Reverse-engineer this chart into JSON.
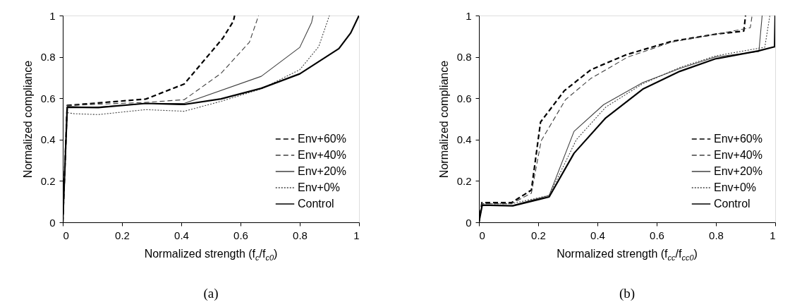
{
  "chart_data": [
    {
      "type": "line",
      "title": "(a)",
      "xlabel": "Normalized strength (f$_{c}$/f$_{c0}$)",
      "ylabel": "Normalized compliance",
      "xlim": [
        0,
        1
      ],
      "ylim": [
        0,
        1
      ],
      "xticks": [
        0,
        0.2,
        0.4,
        0.6,
        0.8,
        1
      ],
      "yticks": [
        0,
        0.2,
        0.4,
        0.6,
        0.8,
        1
      ],
      "grid": false,
      "legend": "bottom right",
      "series": [
        {
          "name": "Env+60%",
          "color": "#000000",
          "line_style": "dashed",
          "x": [
            0,
            0.015,
            0.1,
            0.28,
            0.41,
            0.54,
            0.576,
            0.58
          ],
          "values": [
            0,
            0.565,
            0.575,
            0.596,
            0.669,
            0.89,
            0.973,
            1.0
          ]
        },
        {
          "name": "Env+40%",
          "color": "#404040",
          "line_style": "dashed",
          "x": [
            0,
            0.015,
            0.28,
            0.41,
            0.534,
            0.63,
            0.661
          ],
          "values": [
            0,
            0.565,
            0.58,
            0.593,
            0.72,
            0.871,
            1.0
          ]
        },
        {
          "name": "Env+20%",
          "color": "#404040",
          "line_style": "solid",
          "x": [
            0,
            0.015,
            0.1,
            0.28,
            0.41,
            0.67,
            0.8,
            0.84,
            0.845
          ],
          "values": [
            0,
            0.56,
            0.555,
            0.575,
            0.575,
            0.706,
            0.846,
            0.967,
            1.0
          ]
        },
        {
          "name": "Env+0%",
          "color": "#404040",
          "line_style": "dotted",
          "x": [
            0,
            0.015,
            0.04,
            0.12,
            0.28,
            0.41,
            0.534,
            0.67,
            0.8,
            0.864,
            0.9
          ],
          "values": [
            0,
            0.53,
            0.525,
            0.521,
            0.545,
            0.537,
            0.585,
            0.645,
            0.738,
            0.85,
            1.0
          ]
        },
        {
          "name": "Control",
          "color": "#000000",
          "line_style": "solid",
          "x": [
            0,
            0.015,
            0.12,
            0.28,
            0.41,
            0.534,
            0.67,
            0.8,
            0.932,
            0.972,
            1.0
          ],
          "values": [
            0,
            0.557,
            0.555,
            0.575,
            0.57,
            0.597,
            0.648,
            0.718,
            0.84,
            0.916,
            1.0
          ]
        }
      ]
    },
    {
      "type": "line",
      "title": "(b)",
      "xlabel": "Normalized strength (f$_{cc}$/f$_{cc0}$)",
      "ylabel": "Normalized compliance",
      "xlim": [
        0,
        1
      ],
      "ylim": [
        0,
        1
      ],
      "xticks": [
        0,
        0.2,
        0.4,
        0.6,
        0.8,
        1
      ],
      "yticks": [
        0,
        0.2,
        0.4,
        0.6,
        0.8,
        1
      ],
      "grid": false,
      "legend": "bottom right",
      "series": [
        {
          "name": "Env+60%",
          "color": "#000000",
          "line_style": "dashed",
          "x": [
            0,
            0.01,
            0.11,
            0.177,
            0.208,
            0.288,
            0.378,
            0.498,
            0.65,
            0.8,
            0.894,
            0.9
          ],
          "values": [
            0,
            0.095,
            0.095,
            0.156,
            0.485,
            0.636,
            0.738,
            0.811,
            0.875,
            0.91,
            0.925,
            1.0
          ]
        },
        {
          "name": "Env+40%",
          "color": "#404040",
          "line_style": "dashed",
          "x": [
            0,
            0.01,
            0.11,
            0.177,
            0.21,
            0.292,
            0.378,
            0.502,
            0.649,
            0.8,
            0.916,
            0.922
          ],
          "values": [
            0,
            0.09,
            0.09,
            0.141,
            0.394,
            0.593,
            0.696,
            0.799,
            0.871,
            0.91,
            0.941,
            1.0
          ]
        },
        {
          "name": "Env+20%",
          "color": "#404040",
          "line_style": "solid",
          "x": [
            0,
            0.01,
            0.11,
            0.237,
            0.321,
            0.421,
            0.553,
            0.68,
            0.8,
            0.945,
            0.956
          ],
          "values": [
            0,
            0.08,
            0.08,
            0.13,
            0.44,
            0.569,
            0.676,
            0.745,
            0.8,
            0.826,
            1.0
          ]
        },
        {
          "name": "Env+0%",
          "color": "#404040",
          "line_style": "dotted",
          "x": [
            0,
            0.01,
            0.11,
            0.237,
            0.329,
            0.428,
            0.553,
            0.68,
            0.8,
            0.965,
            0.982
          ],
          "values": [
            0,
            0.09,
            0.09,
            0.13,
            0.4,
            0.557,
            0.67,
            0.75,
            0.805,
            0.847,
            1.0
          ]
        },
        {
          "name": "Control",
          "color": "#000000",
          "line_style": "solid",
          "x": [
            0,
            0.011,
            0.114,
            0.237,
            0.321,
            0.428,
            0.553,
            0.678,
            0.797,
            0.943,
            0.998,
            1.0
          ],
          "values": [
            0,
            0.083,
            0.08,
            0.123,
            0.334,
            0.505,
            0.644,
            0.73,
            0.79,
            0.829,
            0.849,
            1.0
          ]
        }
      ]
    }
  ]
}
